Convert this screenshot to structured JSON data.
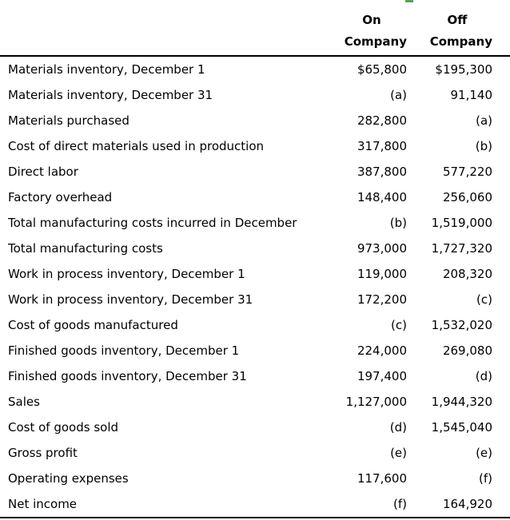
{
  "page": {
    "background": "#ffffff",
    "text_color": "#000000",
    "rule_color": "#000000",
    "green_fragment_color": "#57a457"
  },
  "table": {
    "header": {
      "on": {
        "line1": "On",
        "line2": "Company"
      },
      "off": {
        "line1": "Off",
        "line2": "Company"
      }
    },
    "rows": [
      {
        "label": "Materials inventory, December 1",
        "on": "$65,800",
        "off": "$195,300"
      },
      {
        "label": "Materials inventory, December 31",
        "on": "(a)",
        "off": "91,140"
      },
      {
        "label": "Materials purchased",
        "on": "282,800",
        "off": "(a)"
      },
      {
        "label": "Cost of direct materials used in production",
        "on": "317,800",
        "off": "(b)"
      },
      {
        "label": "Direct labor",
        "on": "387,800",
        "off": "577,220"
      },
      {
        "label": "Factory overhead",
        "on": "148,400",
        "off": "256,060"
      },
      {
        "label": "Total manufacturing costs incurred in December",
        "on": "(b)",
        "off": "1,519,000"
      },
      {
        "label": "Total manufacturing costs",
        "on": "973,000",
        "off": "1,727,320"
      },
      {
        "label": "Work in process inventory, December 1",
        "on": "119,000",
        "off": "208,320"
      },
      {
        "label": "Work in process inventory, December 31",
        "on": "172,200",
        "off": "(c)"
      },
      {
        "label": "Cost of goods manufactured",
        "on": "(c)",
        "off": "1,532,020"
      },
      {
        "label": "Finished goods inventory, December 1",
        "on": "224,000",
        "off": "269,080"
      },
      {
        "label": "Finished goods inventory, December 31",
        "on": "197,400",
        "off": "(d)"
      },
      {
        "label": "Sales",
        "on": "1,127,000",
        "off": "1,944,320"
      },
      {
        "label": "Cost of goods sold",
        "on": "(d)",
        "off": "1,545,040"
      },
      {
        "label": "Gross profit",
        "on": "(e)",
        "off": "(e)"
      },
      {
        "label": "Operating expenses",
        "on": "117,600",
        "off": "(f)"
      },
      {
        "label": "Net income",
        "on": "(f)",
        "off": "164,920"
      }
    ]
  }
}
